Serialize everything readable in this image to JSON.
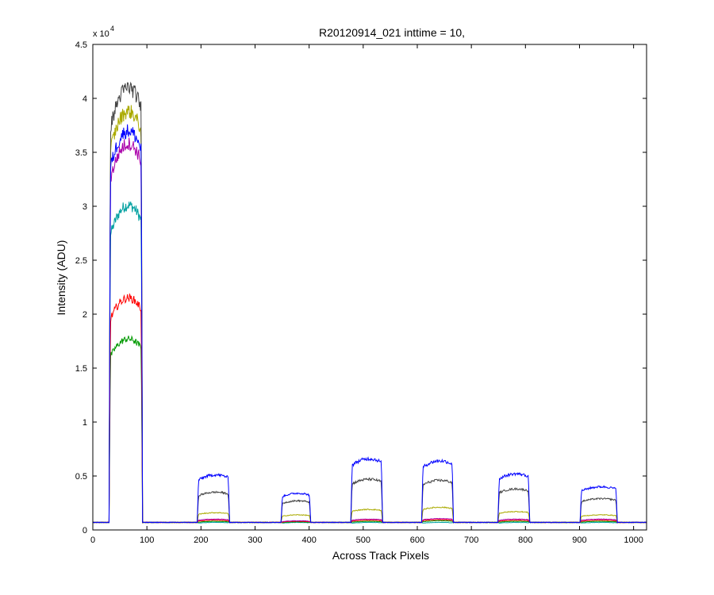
{
  "chart_data": {
    "type": "line",
    "title": "R20120914_021 inttime = 10,",
    "xlabel": "Across Track Pixels",
    "ylabel": "Intensity (ADU)",
    "y_exponent_label": "x 10",
    "y_exponent_power": "4",
    "xlim": [
      0,
      1024
    ],
    "ylim": [
      0,
      45000
    ],
    "x_ticks": [
      0,
      100,
      200,
      300,
      400,
      500,
      600,
      700,
      800,
      900,
      1000
    ],
    "x_tick_labels": [
      "0",
      "100",
      "200",
      "300",
      "400",
      "500",
      "600",
      "700",
      "800",
      "900",
      "1000"
    ],
    "y_ticks": [
      0,
      5000,
      10000,
      15000,
      20000,
      25000,
      30000,
      35000,
      40000,
      45000
    ],
    "y_tick_labels": [
      "0",
      "0.5",
      "1",
      "1.5",
      "2",
      "2.5",
      "3",
      "3.5",
      "4",
      "4.5"
    ],
    "grid": false,
    "legend": "none",
    "baseline": 700,
    "blocks": [
      {
        "x": [
          30,
          92
        ]
      },
      {
        "x": [
          193,
          253
        ]
      },
      {
        "x": [
          348,
          403
        ]
      },
      {
        "x": [
          477,
          536
        ]
      },
      {
        "x": [
          608,
          667
        ]
      },
      {
        "x": [
          749,
          808
        ]
      },
      {
        "x": [
          901,
          970
        ]
      }
    ],
    "series": [
      {
        "color": "#00a0a0",
        "levels": [
          30100,
          700,
          700,
          700,
          700,
          700,
          700
        ]
      },
      {
        "color": "#009900",
        "levels": [
          17700,
          800,
          750,
          800,
          850,
          800,
          800
        ]
      },
      {
        "color": "#ff0000",
        "levels": [
          21500,
          900,
          800,
          900,
          950,
          900,
          900
        ]
      },
      {
        "color": "#aa00aa",
        "levels": [
          35800,
          1000,
          850,
          1000,
          1050,
          1000,
          1000
        ]
      },
      {
        "color": "#aaaa00",
        "levels": [
          38800,
          1600,
          1400,
          1900,
          2100,
          1700,
          1400
        ]
      },
      {
        "color": "#444444",
        "levels": [
          41000,
          3500,
          2700,
          4700,
          4600,
          3800,
          2900
        ]
      },
      {
        "color": "#0000ff",
        "levels": [
          37000,
          5100,
          3400,
          6600,
          6400,
          5200,
          4000
        ]
      }
    ]
  }
}
